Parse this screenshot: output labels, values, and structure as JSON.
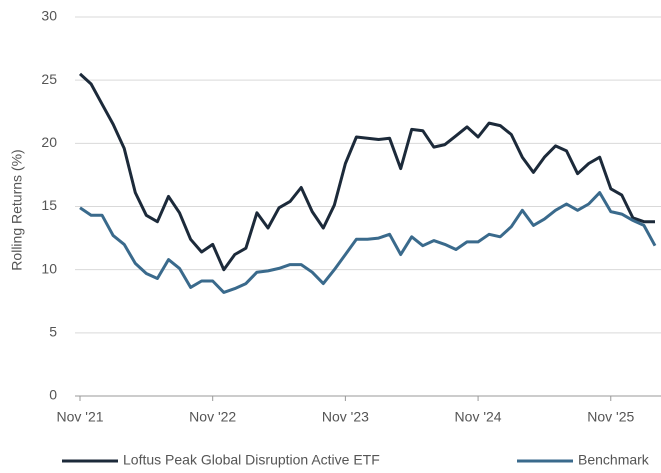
{
  "chart_data": {
    "type": "line",
    "y_label": "Rolling Returns (%)",
    "categories": [
      "Nov '21",
      null,
      null,
      null,
      null,
      null,
      null,
      null,
      null,
      null,
      null,
      null,
      "Nov '22",
      null,
      null,
      null,
      null,
      null,
      null,
      null,
      null,
      null,
      null,
      null,
      "Nov '23",
      null,
      null,
      null,
      null,
      null,
      null,
      null,
      null,
      null,
      null,
      null,
      "Nov '24",
      null,
      null,
      null,
      null,
      null,
      null,
      null,
      null,
      null,
      null,
      null,
      "Nov '25",
      null,
      null,
      null,
      null
    ],
    "series": [
      {
        "name": "Loftus Peak Global Disruption Active ETF",
        "color": "#1c2a3a",
        "values": [
          25.5,
          24.7,
          23.1,
          21.5,
          19.6,
          16.1,
          14.3,
          13.8,
          15.8,
          14.5,
          12.4,
          11.4,
          12.0,
          10.0,
          11.2,
          11.7,
          14.5,
          13.3,
          14.9,
          15.4,
          16.5,
          14.6,
          13.3,
          15.1,
          18.4,
          20.5,
          20.4,
          20.3,
          20.4,
          18.0,
          21.1,
          21.0,
          19.7,
          19.9,
          20.6,
          21.3,
          20.5,
          21.6,
          21.4,
          20.7,
          18.9,
          17.7,
          18.9,
          19.8,
          19.4,
          17.6,
          18.4,
          18.9,
          16.4,
          15.9,
          14.1,
          13.8,
          13.8
        ]
      },
      {
        "name": "Benchmark",
        "color": "#3a6a8c",
        "values": [
          14.9,
          14.3,
          14.3,
          12.7,
          12.0,
          10.5,
          9.7,
          9.3,
          10.8,
          10.1,
          8.6,
          9.1,
          9.1,
          8.2,
          8.5,
          8.9,
          9.8,
          9.9,
          10.1,
          10.4,
          10.4,
          9.8,
          8.9,
          10.0,
          11.2,
          12.4,
          12.4,
          12.5,
          12.8,
          11.2,
          12.6,
          11.9,
          12.3,
          12.0,
          11.6,
          12.2,
          12.2,
          12.8,
          12.6,
          13.4,
          14.7,
          13.5,
          14.0,
          14.7,
          15.2,
          14.7,
          15.2,
          16.1,
          14.6,
          14.4,
          13.9,
          13.5,
          11.9
        ]
      }
    ],
    "ylim": [
      0,
      30
    ],
    "yticks": [
      0,
      5,
      10,
      15,
      20,
      25,
      30
    ],
    "grid": true,
    "legend": "bottom"
  }
}
